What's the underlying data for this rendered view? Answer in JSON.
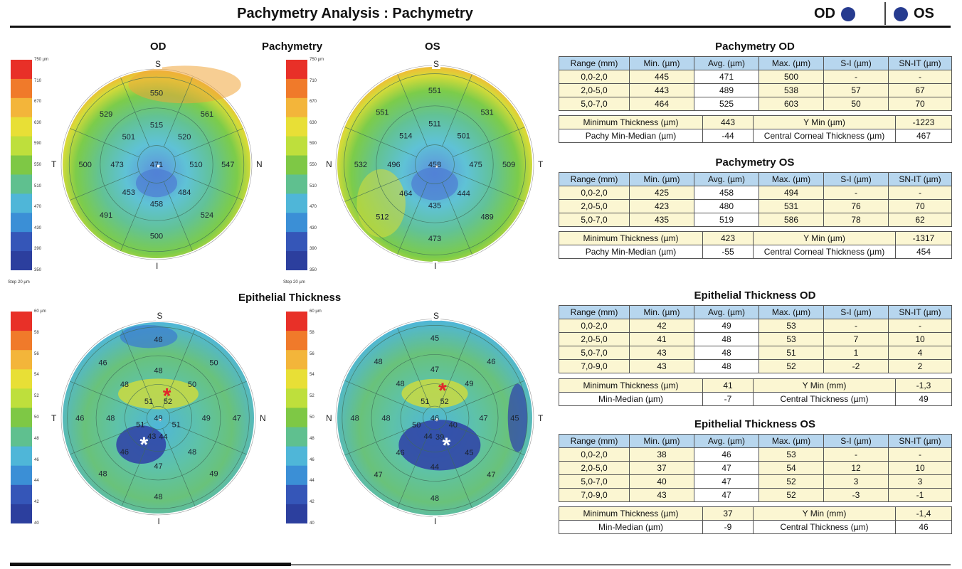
{
  "header": {
    "title": "Pachymetry Analysis : Pachymetry",
    "od_label": "OD",
    "os_label": "OS",
    "eye_dot_color": "#263b8f"
  },
  "sections": {
    "pachymetry": "Pachymetry",
    "epithelial": "Epithelial Thickness"
  },
  "maps": {
    "pachy_od": {
      "eye_label": "OD",
      "orient": {
        "top": "S",
        "bottom": "I",
        "left": "T",
        "right": "N"
      },
      "scale_ticks": [
        "750 µm",
        "710",
        "670",
        "630",
        "590",
        "550",
        "510",
        "470",
        "430",
        "390",
        "350"
      ],
      "step": "Step 20 µm",
      "center": "471",
      "ring1": [
        "515",
        "520",
        "510",
        "484",
        "458",
        "453",
        "473",
        "501"
      ],
      "ring2": [
        "550",
        "561",
        "547",
        "524",
        "500",
        "491",
        "500",
        "529"
      ]
    },
    "pachy_os": {
      "eye_label": "OS",
      "orient": {
        "top": "S",
        "bottom": "I",
        "left": "N",
        "right": "T"
      },
      "scale_ticks": [
        "750 µm",
        "710",
        "670",
        "630",
        "590",
        "550",
        "510",
        "470",
        "430",
        "390",
        "350"
      ],
      "step": "Step 20 µm",
      "center": "458",
      "ring1": [
        "511",
        "501",
        "475",
        "444",
        "435",
        "464",
        "496",
        "514"
      ],
      "ring2": [
        "551",
        "531",
        "509",
        "489",
        "473",
        "512",
        "532",
        "551"
      ]
    },
    "epi_od": {
      "orient": {
        "top": "S",
        "bottom": "I",
        "left": "T",
        "right": "N"
      },
      "scale_ticks": [
        "60 µm",
        "58",
        "56",
        "54",
        "52",
        "50",
        "48",
        "46",
        "44",
        "42",
        "40"
      ],
      "center": "49",
      "ring1": [
        "51",
        "52",
        "51",
        "44",
        "43",
        "51"
      ],
      "ring2": [
        "48",
        "50",
        "49",
        "48",
        "47",
        "46",
        "48",
        "48"
      ],
      "ring3": [
        "46",
        "50",
        "47",
        "49",
        "48",
        "48",
        "46",
        "46"
      ]
    },
    "epi_os": {
      "orient": {
        "top": "S",
        "bottom": "I",
        "left": "N",
        "right": "T"
      },
      "scale_ticks": [
        "60 µm",
        "58",
        "56",
        "54",
        "52",
        "50",
        "48",
        "46",
        "44",
        "42",
        "40"
      ],
      "center": "46",
      "ring1": [
        "51",
        "52",
        "40",
        "39",
        "44",
        "50"
      ],
      "ring2": [
        "47",
        "49",
        "47",
        "45",
        "44",
        "46",
        "48",
        "48"
      ],
      "ring3": [
        "45",
        "46",
        "45",
        "47",
        "48",
        "47",
        "48",
        "48"
      ]
    }
  },
  "tables": {
    "pachy_od": {
      "title": "Pachymetry OD",
      "headers": [
        "Range (mm)",
        "Min. (µm)",
        "Avg. (µm)",
        "Max. (µm)",
        "S-I (µm)",
        "SN-IT (µm)"
      ],
      "rows": [
        [
          "0,0-2,0",
          "445",
          "471",
          "500",
          "-",
          "-"
        ],
        [
          "2,0-5,0",
          "443",
          "489",
          "538",
          "57",
          "67"
        ],
        [
          "5,0-7,0",
          "464",
          "525",
          "603",
          "50",
          "70"
        ]
      ],
      "summary": [
        [
          "Minimum Thickness (µm)",
          "443",
          "Y Min (µm)",
          "-1223"
        ],
        [
          "Pachy Min-Median (µm)",
          "-44",
          "Central Corneal Thickness (µm)",
          "467"
        ]
      ]
    },
    "pachy_os": {
      "title": "Pachymetry OS",
      "headers": [
        "Range (mm)",
        "Min. (µm)",
        "Avg. (µm)",
        "Max. (µm)",
        "S-I (µm)",
        "SN-IT (µm)"
      ],
      "rows": [
        [
          "0,0-2,0",
          "425",
          "458",
          "494",
          "-",
          "-"
        ],
        [
          "2,0-5,0",
          "423",
          "480",
          "531",
          "76",
          "70"
        ],
        [
          "5,0-7,0",
          "435",
          "519",
          "586",
          "78",
          "62"
        ]
      ],
      "summary": [
        [
          "Minimum Thickness (µm)",
          "423",
          "Y Min (µm)",
          "-1317"
        ],
        [
          "Pachy Min-Median (µm)",
          "-55",
          "Central Corneal Thickness (µm)",
          "454"
        ]
      ]
    },
    "epi_od": {
      "title": "Epithelial Thickness OD",
      "headers": [
        "Range (mm)",
        "Min. (µm)",
        "Avg. (µm)",
        "Max. (µm)",
        "S-I (µm)",
        "SN-IT (µm)"
      ],
      "rows": [
        [
          "0,0-2,0",
          "42",
          "49",
          "53",
          "-",
          "-"
        ],
        [
          "2,0-5,0",
          "41",
          "48",
          "53",
          "7",
          "10"
        ],
        [
          "5,0-7,0",
          "43",
          "48",
          "51",
          "1",
          "4"
        ],
        [
          "7,0-9,0",
          "43",
          "48",
          "52",
          "-2",
          "2"
        ]
      ],
      "summary": [
        [
          "Minimum Thickness (µm)",
          "41",
          "Y Min (mm)",
          "-1,3"
        ],
        [
          "Min-Median (µm)",
          "-7",
          "Central Thickness (µm)",
          "49"
        ]
      ]
    },
    "epi_os": {
      "title": "Epithelial Thickness OS",
      "headers": [
        "Range (mm)",
        "Min. (µm)",
        "Avg. (µm)",
        "Max. (µm)",
        "S-I (µm)",
        "SN-IT (µm)"
      ],
      "rows": [
        [
          "0,0-2,0",
          "38",
          "46",
          "53",
          "-",
          "-"
        ],
        [
          "2,0-5,0",
          "37",
          "47",
          "54",
          "12",
          "10"
        ],
        [
          "5,0-7,0",
          "40",
          "47",
          "52",
          "3",
          "3"
        ],
        [
          "7,0-9,0",
          "43",
          "47",
          "52",
          "-3",
          "-1"
        ]
      ],
      "summary": [
        [
          "Minimum Thickness (µm)",
          "37",
          "Y Min (mm)",
          "-1,4"
        ],
        [
          "Min-Median (µm)",
          "-9",
          "Central Thickness (µm)",
          "46"
        ]
      ]
    }
  }
}
